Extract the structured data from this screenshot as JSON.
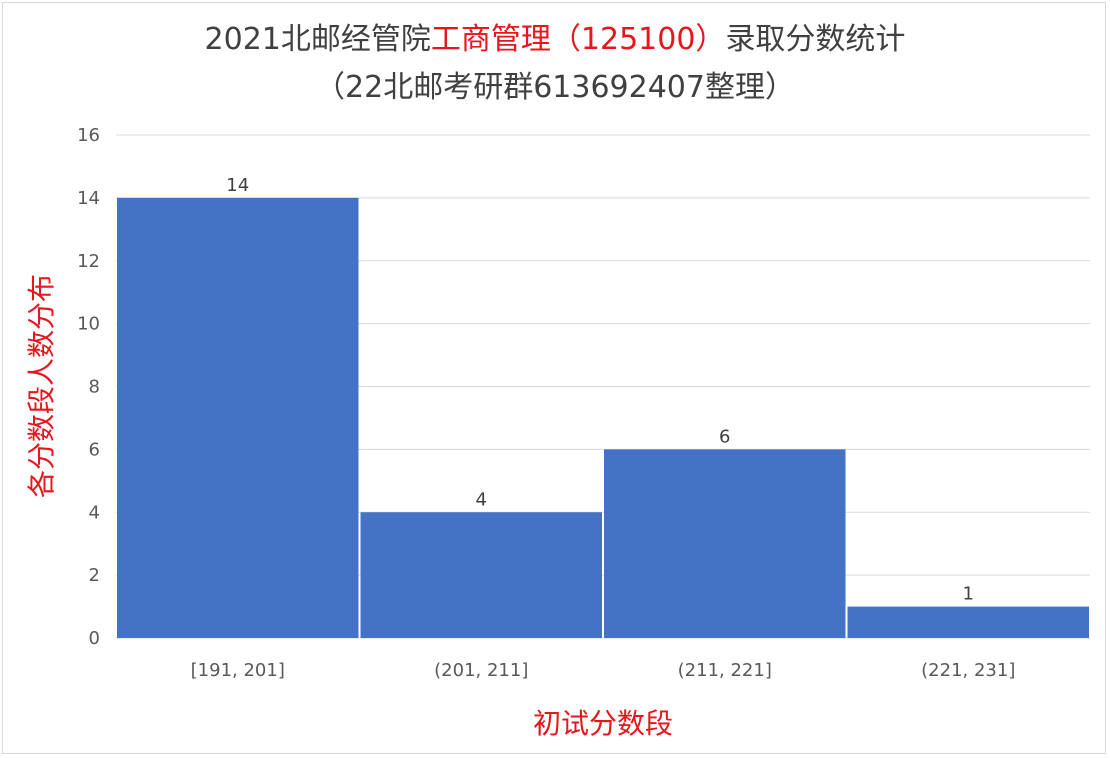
{
  "chart_data": {
    "type": "bar",
    "title": {
      "line1_prefix": "2021北邮经管院",
      "line1_highlight": "工商管理（125100）",
      "line1_suffix": "录取分数统计",
      "line2": "（22北邮考研群613692407整理）"
    },
    "xlabel": "初试分数段",
    "ylabel": "各分数段人数分布",
    "categories": [
      "[191, 201]",
      "(201, 211]",
      "(211, 221]",
      "(221, 231]"
    ],
    "values": [
      14,
      4,
      6,
      1
    ],
    "ylim": [
      0,
      16
    ],
    "yticks": [
      0,
      2,
      4,
      6,
      8,
      10,
      12,
      14,
      16
    ],
    "grid": true,
    "legend": "none",
    "colors": {
      "bar": "#4472c4",
      "grid": "#d9d9d9",
      "highlight": "#e8151b",
      "title": "#404040"
    }
  }
}
